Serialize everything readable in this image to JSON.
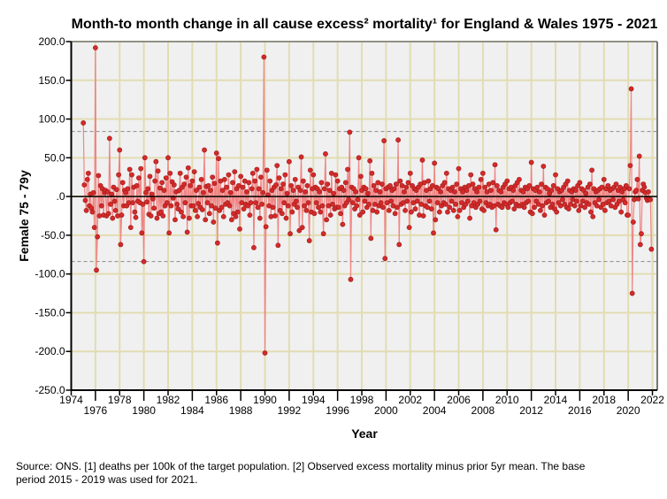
{
  "chart_data": {
    "type": "line",
    "title": "Month-to month change in all cause excess² mortality¹  for England & Wales 1975 - 2021",
    "xlabel": "Year",
    "ylabel": "Female 75 - 79y",
    "xlim": [
      1974,
      2022
    ],
    "ylim": [
      -250,
      200
    ],
    "x_ticks": [
      "1974",
      "1976",
      "1978",
      "1980",
      "1982",
      "1984",
      "1986",
      "1988",
      "1990",
      "1992",
      "1994",
      "1996",
      "1998",
      "2000",
      "2002",
      "2004",
      "2006",
      "2008",
      "2010",
      "2012",
      "2014",
      "2016",
      "2018",
      "2020",
      "2022"
    ],
    "y_ticks": [
      "200.0",
      "150.0",
      "100.0",
      "50.0",
      ".0",
      "-50.0",
      "-100.0",
      "-150.0",
      "-200.0",
      "-250.0"
    ],
    "grid": true,
    "reference_lines": [
      84,
      -84
    ],
    "start_year": 1975,
    "frequency": "monthly",
    "series": [
      {
        "name": "Female 75 - 79y",
        "color": "#d42a2a",
        "line_color": "#f07a7a",
        "values": [
          95,
          15,
          -5,
          -18,
          22,
          30,
          -12,
          3,
          -15,
          -20,
          5,
          -40,
          192,
          -95,
          -52,
          27,
          -25,
          14,
          -12,
          10,
          -24,
          5,
          8,
          -25,
          6,
          -22,
          75,
          -10,
          3,
          -28,
          12,
          -6,
          -18,
          9,
          -25,
          28,
          60,
          -62,
          -24,
          18,
          -12,
          8,
          5,
          -12,
          10,
          -8,
          35,
          -40,
          28,
          -8,
          12,
          -20,
          -27,
          14,
          -6,
          24,
          -8,
          36,
          -47,
          -10,
          -84,
          50,
          5,
          -7,
          10,
          -23,
          26,
          -25,
          3,
          -3,
          -15,
          20,
          45,
          -28,
          33,
          -22,
          11,
          -20,
          18,
          -25,
          8,
          -12,
          24,
          -8,
          50,
          -47,
          30,
          -12,
          19,
          -2,
          15,
          -30,
          6,
          -10,
          -16,
          8,
          30,
          -20,
          12,
          -26,
          16,
          -8,
          25,
          -46,
          37,
          -28,
          14,
          -12,
          20,
          -12,
          32,
          -18,
          8,
          -26,
          -9,
          12,
          -14,
          22,
          -17,
          5,
          60,
          -30,
          13,
          -8,
          14,
          -22,
          8,
          -12,
          25,
          -33,
          17,
          -15,
          56,
          -60,
          49,
          -18,
          20,
          -14,
          8,
          -26,
          22,
          -10,
          12,
          -8,
          28,
          -12,
          5,
          -30,
          18,
          -22,
          32,
          -26,
          10,
          -20,
          14,
          -42,
          26,
          -8,
          12,
          -16,
          20,
          -10,
          6,
          -12,
          18,
          -24,
          -8,
          10,
          30,
          -66,
          20,
          -8,
          35,
          -14,
          10,
          -28,
          25,
          -10,
          5,
          180,
          -202,
          -39,
          34,
          2,
          -12,
          20,
          -26,
          8,
          -14,
          12,
          -25,
          15,
          40,
          -63,
          24,
          -18,
          10,
          -22,
          16,
          -8,
          28,
          -28,
          4,
          -12,
          45,
          -48,
          14,
          -20,
          8,
          -10,
          22,
          -6,
          -14,
          12,
          -44,
          8,
          51,
          -40,
          20,
          -12,
          6,
          -18,
          14,
          -8,
          -57,
          34,
          -20,
          10,
          28,
          -22,
          12,
          -8,
          10,
          -14,
          6,
          -20,
          18,
          -12,
          -48,
          10,
          55,
          -30,
          16,
          -12,
          8,
          -24,
          30,
          -10,
          4,
          -16,
          28,
          -14,
          20,
          -14,
          10,
          -22,
          12,
          -36,
          8,
          -12,
          18,
          -8,
          35,
          -4,
          83,
          -107,
          12,
          -8,
          10,
          -16,
          6,
          -12,
          -4,
          50,
          -24,
          26,
          8,
          -20,
          12,
          -6,
          10,
          -14,
          4,
          -10,
          46,
          -54,
          30,
          -18,
          14,
          -10,
          8,
          -20,
          18,
          -12,
          6,
          -8,
          16,
          -14,
          72,
          -80,
          10,
          -8,
          12,
          -18,
          14,
          -6,
          8,
          -12,
          10,
          -22,
          16,
          -14,
          73,
          -62,
          20,
          -10,
          14,
          -8,
          6,
          -18,
          12,
          -6,
          18,
          -40,
          30,
          -20,
          14,
          -8,
          10,
          -16,
          8,
          -6,
          12,
          -24,
          16,
          -10,
          47,
          -25,
          18,
          -12,
          8,
          -14,
          20,
          -6,
          10,
          -16,
          14,
          -47,
          43,
          -30,
          12,
          -8,
          10,
          -20,
          6,
          -12,
          14,
          -8,
          18,
          -10,
          30,
          -20,
          10,
          -14,
          8,
          -6,
          12,
          -18,
          6,
          -10,
          16,
          -26,
          36,
          -18,
          10,
          -8,
          6,
          -14,
          12,
          -10,
          8,
          -6,
          14,
          -28,
          28,
          -12,
          16,
          -8,
          10,
          -14,
          6,
          -10,
          12,
          -6,
          22,
          -16,
          30,
          -18,
          12,
          -8,
          6,
          -12,
          16,
          -10,
          8,
          -14,
          18,
          -12,
          41,
          -43,
          14,
          -10,
          8,
          -12,
          6,
          -14,
          12,
          -8,
          16,
          -10,
          20,
          -14,
          10,
          -8,
          12,
          -6,
          8,
          -16,
          14,
          -10,
          18,
          -12,
          22,
          -12,
          8,
          -10,
          6,
          -14,
          12,
          -8,
          10,
          -6,
          14,
          -20,
          44,
          -22,
          10,
          -14,
          8,
          -6,
          12,
          -10,
          6,
          -18,
          16,
          -12,
          39,
          -24,
          12,
          -8,
          10,
          -6,
          4,
          -14,
          8,
          -10,
          14,
          -16,
          28,
          -20,
          10,
          -8,
          6,
          -12,
          8,
          -4,
          12,
          -10,
          16,
          -14,
          20,
          -16,
          8,
          -10,
          6,
          -4,
          10,
          -12,
          8,
          -6,
          14,
          -18,
          18,
          -12,
          10,
          -6,
          8,
          -14,
          4,
          -8,
          12,
          -10,
          16,
          -20,
          34,
          -26,
          10,
          -8,
          6,
          -12,
          8,
          -4,
          10,
          -14,
          12,
          -10,
          22,
          -18,
          10,
          -8,
          14,
          -6,
          8,
          -12,
          10,
          -4,
          12,
          -14,
          16,
          -10,
          8,
          -6,
          12,
          -20,
          6,
          -4,
          10,
          -8,
          14,
          -24,
          -24,
          10,
          40,
          139,
          -125,
          -33,
          -4,
          6,
          8,
          22,
          -3,
          52,
          -62,
          -48,
          8,
          16,
          12,
          5,
          -2,
          -5,
          6,
          -3,
          -4,
          -68
        ]
      }
    ]
  },
  "footnote": {
    "line1": "Source: ONS. [1] deaths per 100k of the target population. [2] Observed excess mortality minus prior 5yr mean. The base",
    "line2": "period 2015 - 2019 was used for 2021."
  }
}
